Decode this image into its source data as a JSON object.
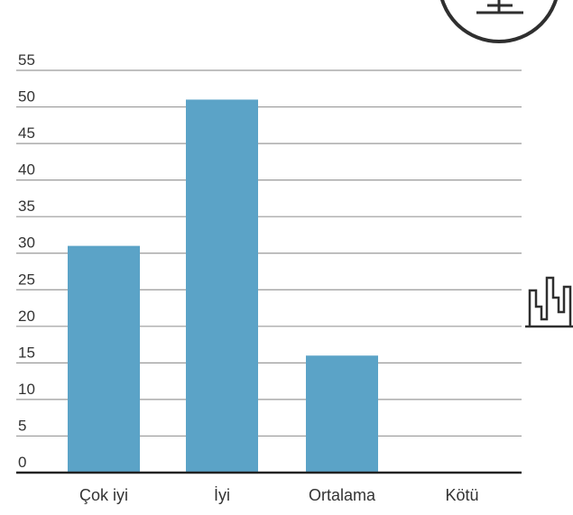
{
  "chart_data": {
    "type": "bar",
    "title": "",
    "xlabel": "",
    "ylabel": "",
    "categories": [
      "Çok iyi",
      "İyi",
      "Ortalama",
      "Kötü"
    ],
    "values": [
      31,
      51,
      16,
      0
    ],
    "ylim": [
      0,
      55
    ],
    "yticks": [
      0,
      5,
      10,
      15,
      20,
      25,
      30,
      35,
      40,
      45,
      50,
      55
    ],
    "ytick_labels": [
      "0",
      "5",
      "10",
      "15",
      "20",
      "25",
      "30",
      "35",
      "40",
      "45",
      "50",
      "55"
    ],
    "grid": true,
    "legend": "none"
  },
  "colors": {
    "bar": "#5ba3c7",
    "grid": "#9a9a9a",
    "axis": "#222222",
    "text": "#333333",
    "icon": "#2f2f2f"
  },
  "icons": {
    "top_right": "circular-badge-icon",
    "right_edge": "bar-chart-icon"
  }
}
